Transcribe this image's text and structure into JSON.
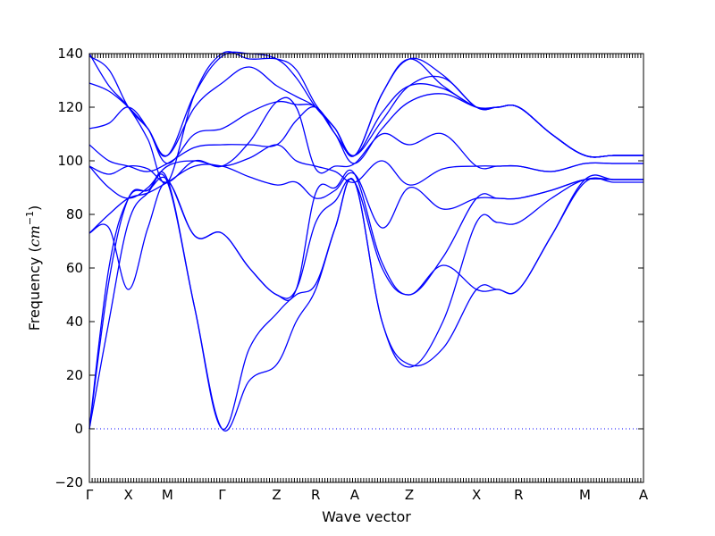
{
  "chart_data": {
    "type": "line",
    "xlabel": "Wave vector",
    "ylabel": "Frequency (",
    "ylabel_math": "cm",
    "ylabel_sup": "−1",
    "ylabel_close": ")",
    "ylim": [
      -20,
      140
    ],
    "yticks": [
      -20,
      0,
      20,
      40,
      60,
      80,
      100,
      120,
      140
    ],
    "ytick_labels": [
      "−20",
      "0",
      "20",
      "40",
      "60",
      "80",
      "100",
      "120",
      "140"
    ],
    "high_symmetry_points": [
      {
        "label": "Γ",
        "x": 0.0
      },
      {
        "label": "X",
        "x": 0.5
      },
      {
        "label": "M",
        "x": 1.0
      },
      {
        "label": "Γ",
        "x": 1.7
      },
      {
        "label": "Z",
        "x": 2.4
      },
      {
        "label": "R",
        "x": 2.9
      },
      {
        "label": "A",
        "x": 3.4
      },
      {
        "label": "Z",
        "x": 4.1
      },
      {
        "label": "X",
        "x": 4.96
      },
      {
        "label": "R",
        "x": 5.5
      },
      {
        "label": "M",
        "x": 6.35
      },
      {
        "label": "A",
        "x": 7.1
      }
    ],
    "xlim": [
      0,
      7.1
    ],
    "line_color": "#0000ff",
    "zero_line": {
      "y": 0,
      "style": "dotted"
    },
    "grid": false,
    "series": [
      {
        "x": [
          0,
          0.25,
          0.5,
          0.75,
          1.0,
          1.35,
          1.7,
          2.05,
          2.4,
          2.65,
          2.9,
          3.15,
          3.4,
          3.75,
          4.1,
          4.53,
          4.96,
          5.23,
          5.5,
          5.92,
          6.35,
          6.72,
          7.1
        ],
        "y": [
          0,
          40,
          77,
          88,
          92,
          45,
          0,
          18,
          24,
          40,
          52,
          75,
          92,
          40,
          24,
          30,
          52,
          52,
          52,
          72,
          92,
          92,
          92
        ]
      },
      {
        "x": [
          0,
          0.25,
          0.5,
          0.75,
          1.0,
          1.35,
          1.7,
          2.05,
          2.4,
          2.65,
          2.9,
          3.15,
          3.4,
          3.75,
          4.1,
          4.53,
          4.96,
          5.23,
          5.5,
          5.92,
          6.35,
          6.72,
          7.1
        ],
        "y": [
          0,
          55,
          86,
          89,
          93,
          45,
          0,
          30,
          43,
          50,
          54,
          75,
          92,
          40,
          23,
          40,
          77,
          77,
          77,
          86,
          93,
          93,
          93
        ]
      },
      {
        "x": [
          0,
          0.25,
          0.5,
          0.75,
          1.0,
          1.35,
          1.7,
          2.05,
          2.4,
          2.65,
          2.9,
          3.15,
          3.4,
          3.75,
          4.1,
          4.53,
          4.96,
          5.23,
          5.5,
          5.92,
          6.35,
          6.72,
          7.1
        ],
        "y": [
          0,
          60,
          86,
          89,
          93,
          72,
          73,
          60,
          50,
          52,
          77,
          85,
          92,
          60,
          50,
          61,
          52,
          52,
          52,
          72,
          93,
          93,
          93
        ]
      },
      {
        "x": [
          0,
          0.25,
          0.5,
          0.75,
          1.0,
          1.35,
          1.7,
          2.05,
          2.4,
          2.65,
          2.9,
          3.15,
          3.4,
          3.75,
          4.1,
          4.53,
          4.96,
          5.23,
          5.5,
          5.92,
          6.35,
          6.72,
          7.1
        ],
        "y": [
          73,
          75,
          52,
          75,
          92,
          72,
          73,
          60,
          50,
          52,
          88,
          90,
          95,
          62,
          50,
          64,
          86,
          86,
          86,
          89,
          93,
          93,
          93
        ]
      },
      {
        "x": [
          0,
          0.25,
          0.5,
          0.75,
          1.0,
          1.35,
          1.7,
          2.05,
          2.4,
          2.65,
          2.9,
          3.15,
          3.4,
          3.75,
          4.1,
          4.53,
          4.96,
          5.23,
          5.5,
          5.92,
          6.35,
          6.72,
          7.1
        ],
        "y": [
          73,
          80,
          86,
          88,
          92,
          98,
          98,
          94,
          91,
          92,
          86,
          89,
          95,
          75,
          90,
          82,
          86,
          86,
          86,
          89,
          93,
          93,
          93
        ]
      },
      {
        "x": [
          0,
          0.25,
          0.5,
          0.75,
          1.0,
          1.35,
          1.7,
          2.05,
          2.4,
          2.65,
          2.9,
          3.15,
          3.4,
          3.75,
          4.1,
          4.53,
          4.96,
          5.23,
          5.5,
          5.92,
          6.35,
          6.72,
          7.1
        ],
        "y": [
          98,
          90,
          86,
          90,
          98,
          100,
          98,
          101,
          106,
          100,
          98,
          96,
          92,
          100,
          91,
          97,
          98,
          98,
          98,
          96,
          99,
          99,
          99
        ]
      },
      {
        "x": [
          0,
          0.25,
          0.5,
          0.75,
          1.0,
          1.35,
          1.7,
          2.05,
          2.4,
          2.65,
          2.9,
          3.15,
          3.4,
          3.75,
          4.1,
          4.53,
          4.96,
          5.23,
          5.5,
          5.92,
          6.35,
          6.72,
          7.1
        ],
        "y": [
          98,
          95,
          98,
          97,
          92,
          100,
          98,
          107,
          122,
          120,
          97,
          98,
          99,
          110,
          106,
          110,
          98,
          98,
          98,
          96,
          99,
          99,
          99
        ]
      },
      {
        "x": [
          0,
          0.25,
          0.5,
          0.75,
          1.0,
          1.35,
          1.7,
          2.05,
          2.4,
          2.65,
          2.9,
          3.15,
          3.4,
          3.75,
          4.1,
          4.53,
          4.96,
          5.23,
          5.5,
          5.92,
          6.35,
          6.72,
          7.1
        ],
        "y": [
          106,
          100,
          98,
          96,
          99,
          105,
          106,
          106,
          106,
          115,
          120,
          110,
          99,
          112,
          122,
          125,
          120,
          120,
          120,
          110,
          102,
          102,
          102
        ]
      },
      {
        "x": [
          0,
          0.25,
          0.5,
          0.75,
          1.0,
          1.35,
          1.7,
          2.05,
          2.4,
          2.65,
          2.9,
          3.15,
          3.4,
          3.75,
          4.1,
          4.53,
          4.96,
          5.23,
          5.5,
          5.92,
          6.35,
          6.72,
          7.1
        ],
        "y": [
          112,
          114,
          120,
          112,
          99,
          110,
          112,
          118,
          122,
          121,
          120,
          110,
          102,
          115,
          128,
          131,
          120,
          120,
          120,
          110,
          102,
          102,
          102
        ]
      },
      {
        "x": [
          0,
          0.25,
          0.5,
          0.75,
          1.0,
          1.35,
          1.7,
          2.05,
          2.4,
          2.65,
          2.9,
          3.15,
          3.4,
          3.75,
          4.1,
          4.53,
          4.96,
          5.23,
          5.5,
          5.92,
          6.35,
          6.72,
          7.1
        ],
        "y": [
          129,
          126,
          120,
          112,
          102,
          120,
          129,
          135,
          128,
          124,
          120,
          112,
          102,
          118,
          128,
          127,
          120,
          120,
          120,
          110,
          102,
          102,
          102
        ]
      },
      {
        "x": [
          0,
          0.25,
          0.5,
          0.75,
          1.0,
          1.35,
          1.7,
          2.05,
          2.4,
          2.65,
          2.9,
          3.15,
          3.4,
          3.75,
          4.1,
          4.53,
          4.96,
          5.23,
          5.5,
          5.92,
          6.35,
          6.72,
          7.1
        ],
        "y": [
          139,
          134,
          120,
          112,
          102,
          125,
          139,
          140,
          138,
          131,
          120,
          112,
          102,
          125,
          138,
          132,
          120,
          120,
          120,
          110,
          102,
          102,
          102
        ]
      },
      {
        "x": [
          0,
          0.25,
          0.5,
          0.75,
          1.0,
          1.35,
          1.7,
          2.05,
          2.4,
          2.65,
          2.9,
          3.15,
          3.4,
          3.75,
          4.1,
          4.53,
          4.96,
          5.23,
          5.5,
          5.92,
          6.35,
          6.72,
          7.1
        ],
        "y": [
          140,
          128,
          120,
          108,
          92,
          125,
          140,
          138,
          138,
          134,
          121,
          112,
          102,
          125,
          138,
          128,
          120,
          120,
          120,
          110,
          102,
          102,
          102
        ]
      }
    ]
  }
}
